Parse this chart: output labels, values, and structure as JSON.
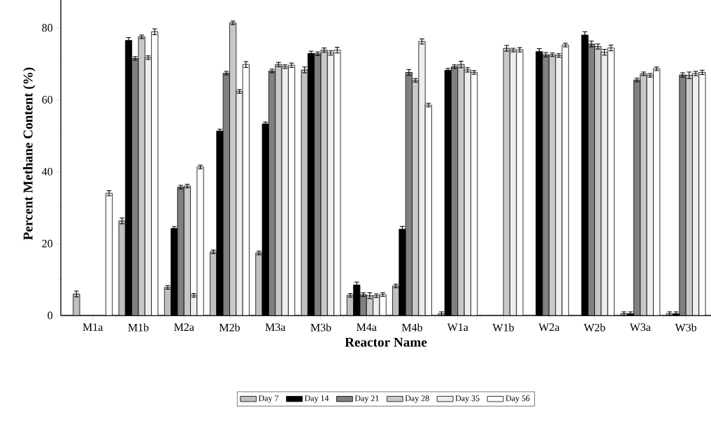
{
  "chart_data": {
    "type": "bar",
    "xlabel": "Reactor Name",
    "ylabel": "Percent Methane Content (%)",
    "categories": [
      "M1a",
      "M1b",
      "M2a",
      "M2b",
      "M3a",
      "M3b",
      "M4a",
      "M4b",
      "W1a",
      "W1b",
      "W2a",
      "W2b",
      "W3a",
      "W3b"
    ],
    "ylim": [
      0,
      90
    ],
    "yticks": [
      0,
      20,
      40,
      60,
      80
    ],
    "legend": "bottom",
    "series": [
      {
        "name": "Day 7",
        "color": "#c0c0c0",
        "values": [
          6,
          26.3,
          7.8,
          17.7,
          17.4,
          68.3,
          5.6,
          8.2,
          0.5,
          null,
          null,
          null,
          0.5,
          0.5
        ],
        "errors": [
          0.8,
          0.8,
          0.5,
          0.5,
          0.5,
          0.8,
          0.5,
          0.5,
          0.5,
          null,
          null,
          null,
          0.5,
          0.5
        ]
      },
      {
        "name": "Day 14",
        "color": "#000000",
        "values": [
          null,
          76.5,
          24.2,
          51.3,
          53.3,
          72.9,
          8.5,
          24,
          68.2,
          null,
          73.4,
          78,
          0.5,
          0.5
        ],
        "errors": [
          null,
          0.8,
          0.5,
          0.5,
          0.5,
          0.6,
          0.8,
          0.8,
          0.5,
          null,
          0.8,
          0.9,
          0.5,
          0.5
        ]
      },
      {
        "name": "Day 21",
        "color": "#808080",
        "values": [
          null,
          71.5,
          35.7,
          67.4,
          68,
          72.8,
          5.8,
          67.6,
          69.2,
          null,
          72.5,
          75.5,
          65.5,
          66.9
        ],
        "errors": [
          null,
          0.5,
          0.5,
          0.5,
          0.5,
          0.5,
          0.5,
          0.8,
          0.5,
          null,
          0.6,
          0.8,
          0.5,
          0.6
        ]
      },
      {
        "name": "Day 28",
        "color": "#c8c8c8",
        "values": [
          null,
          77.5,
          36,
          81.4,
          69.8,
          73.8,
          5.5,
          65.4,
          69.8,
          74.3,
          72.5,
          74.8,
          67.2,
          66.8
        ],
        "errors": [
          null,
          0.5,
          0.5,
          0.5,
          0.6,
          0.6,
          0.8,
          0.5,
          0.9,
          0.8,
          0.5,
          0.7,
          0.5,
          0.9
        ]
      },
      {
        "name": "Day 35",
        "color": "#eeeeee",
        "values": [
          null,
          71.7,
          5.6,
          62.3,
          69.2,
          73,
          5.5,
          76.2,
          68.3,
          73.8,
          72.3,
          73.2,
          66.8,
          67.3
        ],
        "errors": [
          null,
          0.5,
          0.5,
          0.5,
          0.5,
          0.6,
          0.5,
          0.7,
          0.6,
          0.5,
          0.5,
          0.8,
          0.5,
          0.6
        ]
      },
      {
        "name": "Day 56",
        "color": "#ffffff",
        "values": [
          34,
          78.9,
          41.3,
          69.8,
          69.6,
          73.8,
          5.8,
          58.5,
          67.6,
          73.9,
          75.2,
          74.4,
          68.6,
          67.6
        ],
        "errors": [
          0.7,
          0.8,
          0.5,
          0.8,
          0.6,
          0.8,
          0.5,
          0.5,
          0.5,
          0.6,
          0.5,
          0.8,
          0.5,
          0.6
        ]
      }
    ]
  }
}
